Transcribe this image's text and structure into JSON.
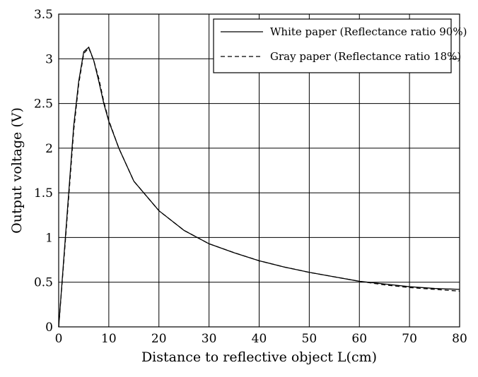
{
  "chart_data": {
    "type": "line",
    "title": "",
    "xlabel": "Distance to reflective object L(cm)",
    "ylabel": "Output voltage (V)",
    "xlim": [
      0,
      80
    ],
    "ylim": [
      0,
      3.5
    ],
    "x_ticks": [
      0,
      10,
      20,
      30,
      40,
      50,
      60,
      70,
      80
    ],
    "y_ticks": [
      0,
      0.5,
      1,
      1.5,
      2,
      2.5,
      3,
      3.5
    ],
    "x_tick_labels": [
      "0",
      "10",
      "20",
      "30",
      "40",
      "50",
      "60",
      "70",
      "80"
    ],
    "y_tick_labels": [
      "0",
      "0.5",
      "1",
      "1.5",
      "2",
      "2.5",
      "3",
      "3.5"
    ],
    "grid": true,
    "legend_position": "top-right",
    "series": [
      {
        "name": "White paper (Reflectance ratio 90%)",
        "style": "solid",
        "color": "#000000",
        "x": [
          0,
          1,
          2,
          3,
          4,
          5,
          6,
          7,
          8,
          9,
          10,
          12,
          15,
          20,
          25,
          30,
          35,
          40,
          45,
          50,
          55,
          60,
          65,
          70,
          75,
          80
        ],
        "y": [
          0.0,
          0.75,
          1.5,
          2.25,
          2.75,
          3.08,
          3.13,
          2.98,
          2.75,
          2.5,
          2.3,
          2.0,
          1.63,
          1.3,
          1.08,
          0.93,
          0.83,
          0.74,
          0.67,
          0.61,
          0.56,
          0.51,
          0.48,
          0.45,
          0.43,
          0.42
        ]
      },
      {
        "name": "Gray paper (Reflectance ratio 18%)",
        "style": "dashed",
        "color": "#000000",
        "x": [
          0,
          1,
          2,
          3,
          4,
          5,
          6,
          7,
          8,
          9,
          10,
          12,
          15,
          20,
          25,
          30,
          35,
          40,
          45,
          50,
          55,
          60,
          65,
          70,
          75,
          80
        ],
        "y": [
          0.0,
          0.72,
          1.45,
          2.2,
          2.72,
          3.06,
          3.12,
          2.98,
          2.78,
          2.52,
          2.31,
          2.0,
          1.63,
          1.3,
          1.08,
          0.93,
          0.83,
          0.74,
          0.67,
          0.61,
          0.56,
          0.51,
          0.47,
          0.44,
          0.42,
          0.4
        ]
      }
    ]
  }
}
